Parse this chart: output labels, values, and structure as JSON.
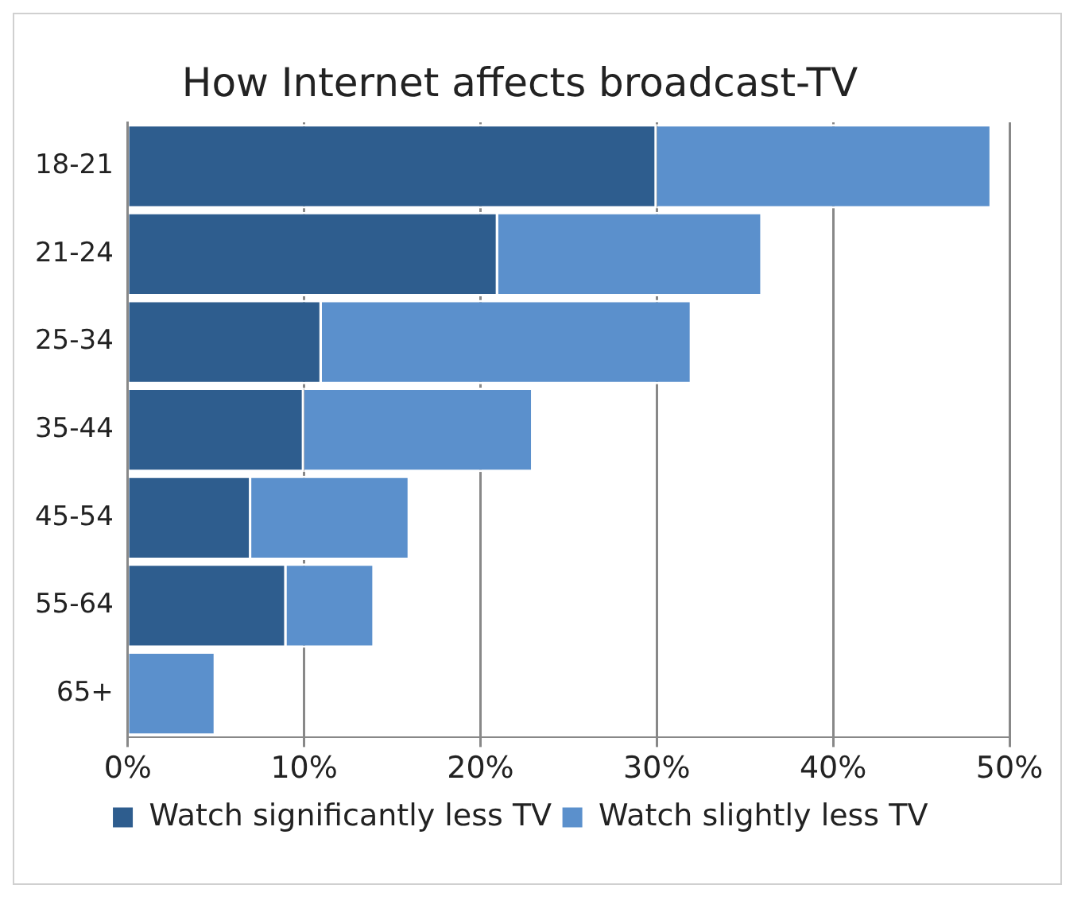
{
  "chart_data": {
    "type": "bar",
    "orientation": "horizontal",
    "stacked": true,
    "title": "How Internet affects broadcast-TV",
    "categories": [
      "18-21",
      "21-24",
      "25-34",
      "35-44",
      "45-54",
      "55-64",
      "65+"
    ],
    "series": [
      {
        "name": "Watch significantly less TV",
        "color": "#2e5d8e",
        "values": [
          30,
          21,
          11,
          10,
          7,
          9,
          0
        ]
      },
      {
        "name": "Watch slightly less TV",
        "color": "#5b90cc",
        "values": [
          19,
          15,
          21,
          13,
          9,
          5,
          5
        ]
      }
    ],
    "xlim": [
      0,
      50
    ],
    "xticks": [
      {
        "value": 0,
        "label": "0%"
      },
      {
        "value": 10,
        "label": "10%"
      },
      {
        "value": 20,
        "label": "20%"
      },
      {
        "value": 30,
        "label": "30%"
      },
      {
        "value": 40,
        "label": "40%"
      },
      {
        "value": 50,
        "label": "50%"
      }
    ],
    "grid": "x",
    "legend": "bottom"
  }
}
